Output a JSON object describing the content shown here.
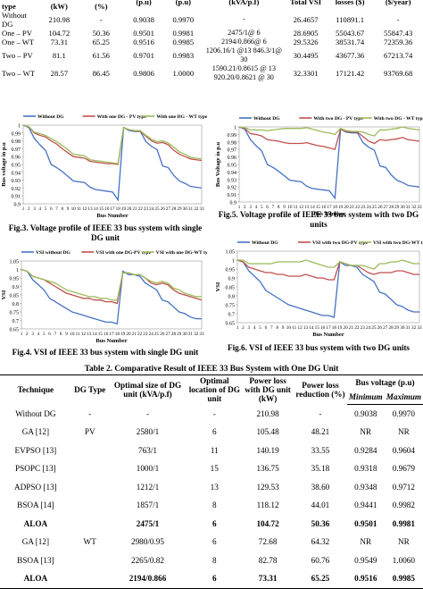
{
  "top_table": {
    "headers": [
      "units and type",
      "losses (kW)",
      "reduction (%)",
      "(p.u)",
      "(p.u)",
      "(kVA/p.f)",
      "Total VSI",
      "losses ($)",
      "($/year)"
    ],
    "rows": [
      {
        "type": "Without DG",
        "loss": "210.98",
        "red": "-",
        "vmin": "0.9038",
        "vmax": "0.9970",
        "size": "-",
        "vsi": "26.4657",
        "cost": "110891.1",
        "saving": "-"
      },
      {
        "type": "One – PV",
        "loss": "104.72",
        "red": "50.36",
        "vmin": "0.9501",
        "vmax": "0.9981",
        "size": "2475/1@ 6",
        "vsi": "28.6905",
        "cost": "55043.67",
        "saving": "55847.43"
      },
      {
        "type": "One – WT",
        "loss": "73.31",
        "red": "65.25",
        "vmin": "0.9516",
        "vmax": "0.9985",
        "size": "2194/0.866@ 6",
        "vsi": "29.5326",
        "cost": "38531.74",
        "saving": "72359.36"
      },
      {
        "type": "Two – PV",
        "loss": "81.1",
        "red": "61.56",
        "vmin": "0.9701",
        "vmax": "0.9983",
        "size": "1206.16/1 @13 846.3/1@ 30",
        "vsi": "30.4495",
        "cost": "43677.36",
        "saving": "67213.74"
      },
      {
        "type": "Two – WT",
        "loss": "28.57",
        "red": "86.45",
        "vmin": "0.9806",
        "vmax": "1.0000",
        "size": "1590.21/0.8615 @ 13 920.20/0.8621 @ 30",
        "vsi": "32.3301",
        "cost": "17121.42",
        "saving": "93769.68"
      }
    ]
  },
  "figures": {
    "fig3": {
      "caption": "Fig.3. Voltage profile of IEEE 33 bus system with single DG unit",
      "legend": [
        "Without DG",
        "With one DG - PV type",
        "With one DG - WT type"
      ],
      "xlabel": "Bus Number",
      "ylabel": "Bus voltage in p.u",
      "yticks": [
        "1",
        "0.99",
        "0.98",
        "0.97",
        "0.96",
        "0.95",
        "0.94",
        "0.93",
        "0.92",
        "0.91",
        "0.9"
      ]
    },
    "fig5": {
      "caption": "Fig.5. Voltage profile of IEEE 33 bus system with two DG units",
      "legend": [
        "Without DG",
        "With two DG - PV type",
        "With two DG - WT type"
      ],
      "xlabel": "Bus Number",
      "ylabel": "Bus Voltage in p.u",
      "yticks": [
        "1",
        "0.99",
        "0.98",
        "0.97",
        "0.96",
        "0.95",
        "0.94",
        "0.93",
        "0.92",
        "0.91",
        "0.9"
      ]
    },
    "fig4": {
      "caption": "Fig.4. VSI of IEEE 33 bus system with single DG unit",
      "legend": [
        "VSI without DG",
        "VSI with one DG-PV type",
        "VSI with one DG-WT type"
      ],
      "xlabel": "Bus Number",
      "ylabel": "VSI",
      "yticks": [
        "1.05",
        "1",
        "0.95",
        "0.9",
        "0.85",
        "0.8",
        "0.75",
        "0.7",
        "0.65"
      ]
    },
    "fig6": {
      "caption": "Fig.6. VSI of IEEE 33 bus system with two DG units",
      "legend": [
        "Without DG",
        "VSI with two DG-PV type",
        "VSI with two DG-WT type"
      ],
      "xlabel": "Bus Number",
      "ylabel": "VSI",
      "yticks": [
        "1.05",
        "1",
        "0.95",
        "0.9",
        "0.85",
        "0.8",
        "0.75",
        "0.7",
        "0.65"
      ]
    }
  },
  "chart_data": [
    {
      "type": "line",
      "title": "Fig.3. Voltage profile of IEEE 33 bus system with single DG unit",
      "xlabel": "Bus Number",
      "ylabel": "Bus voltage in p.u",
      "ylim": [
        0.9,
        1.0
      ],
      "x": [
        1,
        2,
        3,
        4,
        5,
        6,
        7,
        8,
        9,
        10,
        11,
        12,
        13,
        14,
        15,
        16,
        17,
        18,
        19,
        20,
        21,
        22,
        23,
        24,
        25,
        26,
        27,
        28,
        29,
        30,
        31,
        32,
        33
      ],
      "series": [
        {
          "name": "Without DG",
          "color": "#4472c4",
          "values": [
            1.0,
            0.997,
            0.983,
            0.975,
            0.968,
            0.95,
            0.946,
            0.941,
            0.935,
            0.929,
            0.928,
            0.927,
            0.921,
            0.918,
            0.917,
            0.916,
            0.915,
            0.905,
            0.997,
            0.993,
            0.992,
            0.992,
            0.979,
            0.973,
            0.969,
            0.948,
            0.946,
            0.936,
            0.929,
            0.926,
            0.922,
            0.921,
            0.92
          ]
        },
        {
          "name": "With one DG - PV type",
          "color": "#c0504d",
          "values": [
            1.0,
            0.998,
            0.99,
            0.987,
            0.985,
            0.98,
            0.976,
            0.97,
            0.965,
            0.96,
            0.959,
            0.958,
            0.954,
            0.953,
            0.952,
            0.951,
            0.951,
            0.95,
            0.997,
            0.994,
            0.993,
            0.992,
            0.986,
            0.98,
            0.977,
            0.978,
            0.975,
            0.968,
            0.963,
            0.96,
            0.957,
            0.956,
            0.955
          ]
        },
        {
          "name": "With one DG - WT type",
          "color": "#9bbb59",
          "values": [
            1.0,
            0.998,
            0.991,
            0.989,
            0.987,
            0.983,
            0.979,
            0.974,
            0.969,
            0.963,
            0.962,
            0.961,
            0.956,
            0.955,
            0.954,
            0.953,
            0.952,
            0.951,
            0.997,
            0.994,
            0.993,
            0.993,
            0.987,
            0.982,
            0.979,
            0.98,
            0.977,
            0.972,
            0.966,
            0.963,
            0.959,
            0.958,
            0.957
          ]
        }
      ]
    },
    {
      "type": "line",
      "title": "Fig.5. Voltage profile of IEEE 33 bus system with two DG units",
      "xlabel": "Bus Number",
      "ylabel": "Bus Voltage in p.u",
      "ylim": [
        0.9,
        1.0
      ],
      "x": [
        1,
        2,
        3,
        4,
        5,
        6,
        7,
        8,
        9,
        10,
        11,
        12,
        13,
        14,
        15,
        16,
        17,
        18,
        19,
        20,
        21,
        22,
        23,
        24,
        25,
        26,
        27,
        28,
        29,
        30,
        31,
        32,
        33
      ],
      "series": [
        {
          "name": "Without DG",
          "color": "#4472c4",
          "values": [
            1.0,
            0.997,
            0.983,
            0.975,
            0.968,
            0.95,
            0.946,
            0.941,
            0.935,
            0.929,
            0.928,
            0.927,
            0.921,
            0.918,
            0.917,
            0.916,
            0.915,
            0.905,
            0.997,
            0.993,
            0.992,
            0.992,
            0.979,
            0.973,
            0.969,
            0.948,
            0.946,
            0.936,
            0.929,
            0.926,
            0.922,
            0.921,
            0.92
          ]
        },
        {
          "name": "With two DG - PV type",
          "color": "#c0504d",
          "values": [
            1.0,
            0.998,
            0.991,
            0.99,
            0.988,
            0.983,
            0.982,
            0.981,
            0.979,
            0.978,
            0.978,
            0.978,
            0.979,
            0.977,
            0.975,
            0.974,
            0.972,
            0.97,
            0.997,
            0.994,
            0.993,
            0.993,
            0.987,
            0.981,
            0.978,
            0.983,
            0.982,
            0.983,
            0.984,
            0.986,
            0.983,
            0.982,
            0.981
          ]
        },
        {
          "name": "With two DG - WT type",
          "color": "#9bbb59",
          "values": [
            1.0,
            0.999,
            0.996,
            0.996,
            0.996,
            0.995,
            0.996,
            0.997,
            0.998,
            0.998,
            0.998,
            0.998,
            0.999,
            0.997,
            0.995,
            0.993,
            0.992,
            0.99,
            0.998,
            0.995,
            0.994,
            0.994,
            0.993,
            0.99,
            0.988,
            0.996,
            0.996,
            0.997,
            0.998,
            1.0,
            0.998,
            0.997,
            0.996
          ]
        }
      ]
    },
    {
      "type": "line",
      "title": "Fig.4. VSI of IEEE 33 bus system with single DG unit",
      "xlabel": "Bus Number",
      "ylabel": "VSI",
      "ylim": [
        0.65,
        1.05
      ],
      "x": [
        1,
        2,
        3,
        4,
        5,
        6,
        7,
        8,
        9,
        10,
        11,
        12,
        13,
        14,
        15,
        16,
        17,
        18,
        19,
        20,
        21,
        22,
        23,
        24,
        25,
        26,
        27,
        28,
        29,
        30,
        31,
        32,
        33
      ],
      "series": [
        {
          "name": "VSI without DG",
          "color": "#4472c4",
          "values": [
            1.0,
            0.99,
            0.94,
            0.91,
            0.88,
            0.83,
            0.81,
            0.79,
            0.77,
            0.75,
            0.74,
            0.73,
            0.72,
            0.71,
            0.7,
            0.69,
            0.69,
            0.68,
            0.99,
            0.97,
            0.97,
            0.96,
            0.92,
            0.9,
            0.88,
            0.82,
            0.81,
            0.78,
            0.75,
            0.74,
            0.72,
            0.71,
            0.71
          ]
        },
        {
          "name": "VSI with one DG-PV type",
          "color": "#c0504d",
          "values": [
            1.0,
            0.99,
            0.96,
            0.95,
            0.94,
            0.92,
            0.9,
            0.88,
            0.86,
            0.85,
            0.84,
            0.83,
            0.83,
            0.82,
            0.82,
            0.81,
            0.81,
            0.8,
            0.98,
            0.98,
            0.97,
            0.97,
            0.95,
            0.92,
            0.91,
            0.92,
            0.91,
            0.88,
            0.86,
            0.85,
            0.84,
            0.83,
            0.82
          ]
        },
        {
          "name": "VSI with one DG-WT type",
          "color": "#9bbb59",
          "values": [
            1.0,
            0.99,
            0.96,
            0.95,
            0.94,
            0.93,
            0.92,
            0.9,
            0.88,
            0.87,
            0.86,
            0.85,
            0.84,
            0.84,
            0.83,
            0.83,
            0.82,
            0.82,
            0.98,
            0.98,
            0.97,
            0.97,
            0.95,
            0.93,
            0.92,
            0.93,
            0.92,
            0.89,
            0.88,
            0.86,
            0.85,
            0.84,
            0.84
          ]
        }
      ]
    },
    {
      "type": "line",
      "title": "Fig.6. VSI of IEEE 33 bus system with two DG units",
      "xlabel": "Bus Number",
      "ylabel": "VSI",
      "ylim": [
        0.65,
        1.05
      ],
      "x": [
        1,
        2,
        3,
        4,
        5,
        6,
        7,
        8,
        9,
        10,
        11,
        12,
        13,
        14,
        15,
        16,
        17,
        18,
        19,
        20,
        21,
        22,
        23,
        24,
        25,
        26,
        27,
        28,
        29,
        30,
        31,
        32,
        33
      ],
      "series": [
        {
          "name": "Without DG",
          "color": "#4472c4",
          "values": [
            1.0,
            0.99,
            0.94,
            0.91,
            0.88,
            0.83,
            0.81,
            0.79,
            0.77,
            0.75,
            0.74,
            0.73,
            0.72,
            0.71,
            0.7,
            0.69,
            0.69,
            0.68,
            0.99,
            0.97,
            0.97,
            0.96,
            0.92,
            0.9,
            0.88,
            0.82,
            0.81,
            0.78,
            0.75,
            0.74,
            0.72,
            0.71,
            0.71
          ]
        },
        {
          "name": "VSI with two DG-PV type",
          "color": "#c0504d",
          "values": [
            1.0,
            0.99,
            0.96,
            0.95,
            0.94,
            0.93,
            0.93,
            0.92,
            0.92,
            0.91,
            0.91,
            0.91,
            0.92,
            0.91,
            0.9,
            0.9,
            0.89,
            0.89,
            0.99,
            0.98,
            0.97,
            0.97,
            0.95,
            0.93,
            0.92,
            0.93,
            0.93,
            0.93,
            0.94,
            0.94,
            0.93,
            0.92,
            0.92
          ]
        },
        {
          "name": "VSI with two DG-WT type",
          "color": "#9bbb59",
          "values": [
            1.0,
            1.0,
            0.98,
            0.98,
            0.98,
            0.98,
            0.98,
            0.99,
            0.99,
            0.99,
            0.99,
            0.99,
            1.0,
            0.99,
            0.98,
            0.97,
            0.96,
            0.96,
            0.99,
            0.98,
            0.97,
            0.97,
            0.97,
            0.96,
            0.95,
            0.98,
            0.98,
            0.99,
            0.99,
            1.0,
            0.99,
            0.98,
            0.98
          ]
        }
      ]
    }
  ],
  "table2": {
    "title": "Table 2. Comparative Result of IEEE 33 Bus System with One DG Unit",
    "headers": {
      "technique": "Technique",
      "dg_type": "DG Type",
      "opt_size": "Optimal size of DG unit (kVA/p.f)",
      "opt_loc": "Optimal location of DG unit",
      "power_loss": "Power loss with DG unit (kW)",
      "loss_red": "Power loss reduction (%)",
      "bus_voltage": "Bus voltage (p.u)",
      "minimum": "Minimum",
      "maximum": "Maximum"
    },
    "rows": [
      {
        "technique": "Without DG",
        "type": "-",
        "size": "-",
        "loc": "-",
        "loss": "210.98",
        "red": "-",
        "min": "0.9038",
        "max": "0.9970",
        "bold": false
      },
      {
        "technique": "GA [12]",
        "type": "PV",
        "size": "2580/1",
        "loc": "6",
        "loss": "105.48",
        "red": "48.21",
        "min": "NR",
        "max": "NR",
        "bold": false
      },
      {
        "technique": "EVPSO [13]",
        "type": "",
        "size": "763/1",
        "loc": "11",
        "loss": "140.19",
        "red": "33.55",
        "min": "0.9284",
        "max": "0.9604",
        "bold": false
      },
      {
        "technique": "PSOPC [13]",
        "type": "",
        "size": "1000/1",
        "loc": "15",
        "loss": "136.75",
        "red": "35.18",
        "min": "0.9318",
        "max": "0.9679",
        "bold": false
      },
      {
        "technique": "ADPSO [13]",
        "type": "",
        "size": "1212/1",
        "loc": "13",
        "loss": "129.53",
        "red": "38.60",
        "min": "0.9348",
        "max": "0.9712",
        "bold": false
      },
      {
        "technique": "BSOA [14]",
        "type": "",
        "size": "1857/1",
        "loc": "8",
        "loss": "118.12",
        "red": "44.01",
        "min": "0.9441",
        "max": "0.9982",
        "bold": false
      },
      {
        "technique": "ALOA",
        "type": "",
        "size": "2475/1",
        "loc": "6",
        "loss": "104.72",
        "red": "50.36",
        "min": "0.9501",
        "max": "0.9981",
        "bold": true
      },
      {
        "technique": "GA [12]",
        "type": "WT",
        "size": "2980/0.95",
        "loc": "6",
        "loss": "72.68",
        "red": "64.32",
        "min": "NR",
        "max": "NR",
        "bold": false
      },
      {
        "technique": "BSOA [13]",
        "type": "",
        "size": "2265/0.82",
        "loc": "8",
        "loss": "82.78",
        "red": "60.76",
        "min": "0.9549",
        "max": "1.0060",
        "bold": false
      },
      {
        "technique": "ALOA",
        "type": "",
        "size": "2194/0.866",
        "loc": "6",
        "loss": "73.31",
        "red": "65.25",
        "min": "0.9516",
        "max": "0.9985",
        "bold": true
      }
    ]
  }
}
